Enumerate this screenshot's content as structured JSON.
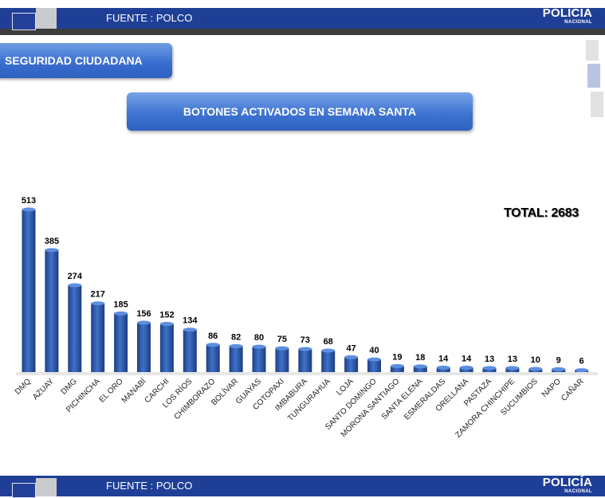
{
  "header": {
    "source": "FUENTE : POLCO",
    "brand": "POLICÍA",
    "brand_sub": "NACIONAL"
  },
  "footer": {
    "source": "FUENTE : POLCO",
    "brand": "POLICÍA",
    "brand_sub": "NACIONAL"
  },
  "section_label": "SEGURIDAD CIUDADANA",
  "total_label": "TOTAL: 2683",
  "colors": {
    "bar": "#2f5fb4",
    "header": "#1f3f97",
    "accent": "#3a6fcf"
  },
  "chart_data": {
    "type": "bar",
    "title": "BOTONES ACTIVADOS EN SEMANA SANTA",
    "categories": [
      "DMQ",
      "AZUAY",
      "DMG",
      "PICHINCHA",
      "EL ORO",
      "MANABÍ",
      "CARCHI",
      "LOS RÍOS",
      "CHIMBORAZO",
      "BOLÍVAR",
      "GUAYAS",
      "COTOPAXI",
      "IMBABURA",
      "TUNGURAHUA",
      "LOJA",
      "SANTO DOMINGO",
      "MORONA SANTIAGO",
      "SANTA ELENA",
      "ESMERALDAS",
      "ORELLANA",
      "PASTAZA",
      "ZAMORA CHINCHIPE",
      "SUCUMBIOS",
      "NAPO",
      "CAÑAR"
    ],
    "values": [
      513,
      385,
      274,
      217,
      185,
      156,
      152,
      134,
      86,
      82,
      80,
      75,
      73,
      68,
      47,
      40,
      19,
      18,
      14,
      14,
      13,
      13,
      10,
      9,
      6
    ],
    "xlabel": "",
    "ylabel": "",
    "ylim": [
      0,
      513
    ],
    "grid": false,
    "legend": "none"
  }
}
